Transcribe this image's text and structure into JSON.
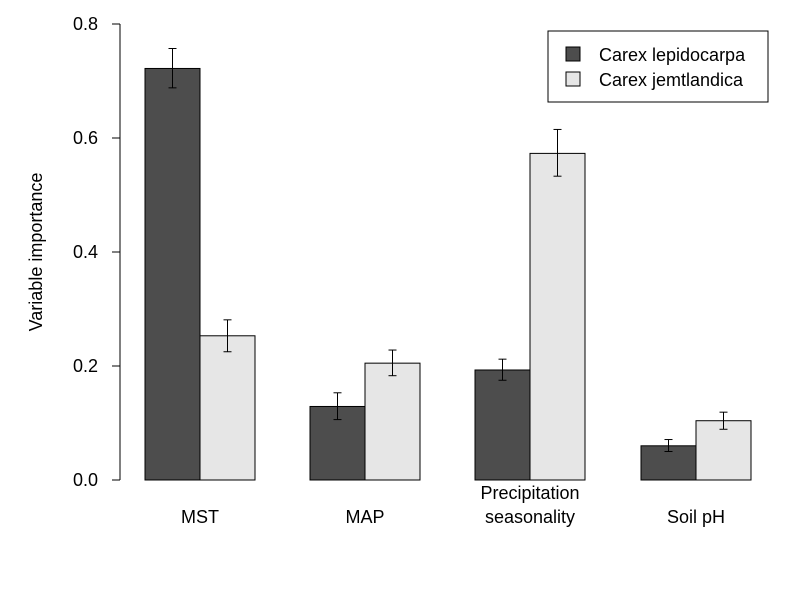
{
  "chart_data": {
    "type": "bar",
    "categories": [
      "MST",
      "MAP",
      "Precipitation\nseasonality",
      "Soil pH"
    ],
    "series": [
      {
        "name": "Carex lepidocarpa",
        "color": "#4d4d4d",
        "values": [
          0.722,
          0.129,
          0.193,
          0.06
        ],
        "error_low": [
          0.688,
          0.106,
          0.175,
          0.05
        ],
        "error_high": [
          0.757,
          0.153,
          0.212,
          0.071
        ]
      },
      {
        "name": "Carex jemtlandica",
        "color": "#e6e6e6",
        "values": [
          0.253,
          0.205,
          0.573,
          0.104
        ],
        "error_low": [
          0.225,
          0.183,
          0.533,
          0.089
        ],
        "error_high": [
          0.281,
          0.228,
          0.615,
          0.119
        ]
      }
    ],
    "title": "",
    "xlabel": "",
    "ylabel": "Variable importance",
    "ylim": [
      0,
      0.8
    ],
    "yticks": [
      0.0,
      0.2,
      0.4,
      0.6,
      0.8
    ],
    "ytick_labels": [
      "0.0",
      "0.2",
      "0.4",
      "0.6",
      "0.8"
    ],
    "grid": false,
    "legend_position": "top-right"
  }
}
